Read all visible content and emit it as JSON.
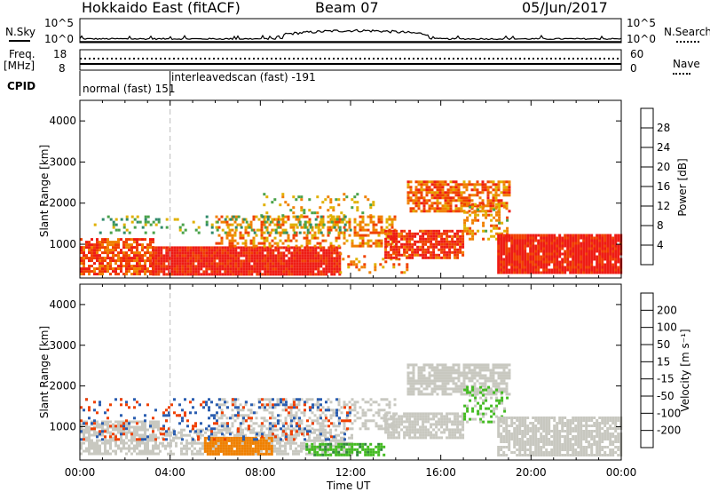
{
  "header": {
    "station": "Hokkaido East (fitACF)",
    "beam": "Beam 07",
    "date": "05/Jun/2017"
  },
  "top_labels": {
    "nsky": "N.Sky",
    "freq_line1": "Freq.",
    "freq_line2": "[MHz]",
    "cpid": "CPID",
    "nsearch": "N.Search",
    "nave": "Nave"
  },
  "noise_panel": {
    "left_ticks": [
      "10^5",
      "10^0"
    ],
    "right_ticks": [
      "10^5",
      "10^0"
    ]
  },
  "freq_panel": {
    "left_ticks": [
      "18",
      "8"
    ],
    "right_ticks": [
      "60",
      "0"
    ]
  },
  "cpid_segments": [
    {
      "label": "normal (fast) 151",
      "start_hour": 0.0,
      "end_hour": 4.0
    },
    {
      "label": "interleavedscan (fast) -191",
      "start_hour": 4.0,
      "end_hour": 24.0
    }
  ],
  "colors": {
    "power_scale": [
      "#1f22d6",
      "#2a5db0",
      "#2f8a6a",
      "#4aa24a",
      "#e0b000",
      "#f08000",
      "#f04000",
      "#ee1c14"
    ],
    "velocity_scale": [
      "#ee1c14",
      "#f04000",
      "#f08000",
      "#e0b000",
      "#c8c8c0",
      "#44bb22",
      "#2f8a3a",
      "#2a5db0",
      "#1f22d6"
    ],
    "ground_scatter": "#c8c8c0"
  },
  "power_colorbar": {
    "label": "Power [dB]",
    "ticks": [
      "28",
      "24",
      "20",
      "16",
      "12",
      "8",
      "4"
    ]
  },
  "velocity_colorbar": {
    "label": "Velocity [m s⁻¹]",
    "ticks": [
      "200",
      "100",
      "50",
      "15",
      "-15",
      "-50",
      "-100",
      "-200"
    ]
  },
  "chart_data": {
    "type": "heatmap",
    "xlabel": "Time UT",
    "ylabel": "Slant Range [km]",
    "xticks": [
      "00:00",
      "04:00",
      "08:00",
      "12:00",
      "16:00",
      "20:00",
      "00:00"
    ],
    "yticks": [
      "4000",
      "3000",
      "2000",
      "1000"
    ],
    "xlim_hours": [
      0,
      24
    ],
    "ylim_km": [
      180,
      4500
    ],
    "panels": [
      {
        "name": "Power",
        "unit": "dB",
        "range": [
          0,
          30
        ],
        "regions": [
          {
            "t0": 0.0,
            "t1": 3.2,
            "r0": 300,
            "r1": 1150,
            "level": 26,
            "density": 0.75
          },
          {
            "t0": 3.2,
            "t1": 11.5,
            "r0": 300,
            "r1": 950,
            "level": 30,
            "density": 0.95
          },
          {
            "t0": 6.0,
            "t1": 14.0,
            "r0": 950,
            "r1": 1700,
            "level": 22,
            "density": 0.45
          },
          {
            "t0": 8.0,
            "t1": 13.0,
            "r0": 1700,
            "r1": 2250,
            "level": 18,
            "density": 0.15
          },
          {
            "t0": 11.5,
            "t1": 14.5,
            "r0": 300,
            "r1": 800,
            "level": 22,
            "density": 0.2
          },
          {
            "t0": 13.5,
            "t1": 17.0,
            "r0": 700,
            "r1": 1350,
            "level": 28,
            "density": 0.8
          },
          {
            "t0": 14.5,
            "t1": 19.0,
            "r0": 1800,
            "r1": 2550,
            "level": 24,
            "density": 0.7
          },
          {
            "t0": 17.0,
            "t1": 19.0,
            "r0": 1100,
            "r1": 2000,
            "level": 20,
            "density": 0.35
          },
          {
            "t0": 18.5,
            "t1": 24.0,
            "r0": 300,
            "r1": 1250,
            "level": 30,
            "density": 0.95
          },
          {
            "t0": 0.5,
            "t1": 12.0,
            "r0": 1300,
            "r1": 1700,
            "level": 14,
            "density": 0.2
          }
        ]
      },
      {
        "name": "Velocity",
        "unit": "m s-1",
        "range": [
          -250,
          250
        ],
        "regions": [
          {
            "t0": 0.0,
            "t1": 3.5,
            "r0": 300,
            "r1": 1150,
            "level": 0,
            "density": 0.7
          },
          {
            "t0": 3.5,
            "t1": 12.0,
            "r0": 300,
            "r1": 950,
            "level": 0,
            "density": 0.6
          },
          {
            "t0": 5.5,
            "t1": 8.5,
            "r0": 300,
            "r1": 750,
            "level": -75,
            "density": 0.9
          },
          {
            "t0": 10.0,
            "t1": 13.5,
            "r0": 300,
            "r1": 600,
            "level": 40,
            "density": 0.7
          },
          {
            "t0": 6.0,
            "t1": 14.0,
            "r0": 950,
            "r1": 1700,
            "level": 0,
            "density": 0.4
          },
          {
            "t0": 14.5,
            "t1": 19.0,
            "r0": 1800,
            "r1": 2550,
            "level": 0,
            "density": 0.75
          },
          {
            "t0": 13.5,
            "t1": 17.0,
            "r0": 700,
            "r1": 1350,
            "level": 0,
            "density": 0.8
          },
          {
            "t0": 17.0,
            "t1": 19.0,
            "r0": 1100,
            "r1": 2000,
            "level": 20,
            "density": 0.35
          },
          {
            "t0": 18.5,
            "t1": 24.0,
            "r0": 300,
            "r1": 1250,
            "level": 0,
            "density": 0.8
          },
          {
            "t0": 0.0,
            "t1": 12.0,
            "r0": 700,
            "r1": 1700,
            "level": 150,
            "density": 0.12
          },
          {
            "t0": 0.0,
            "t1": 12.0,
            "r0": 700,
            "r1": 1700,
            "level": -150,
            "density": 0.08
          }
        ]
      }
    ]
  }
}
